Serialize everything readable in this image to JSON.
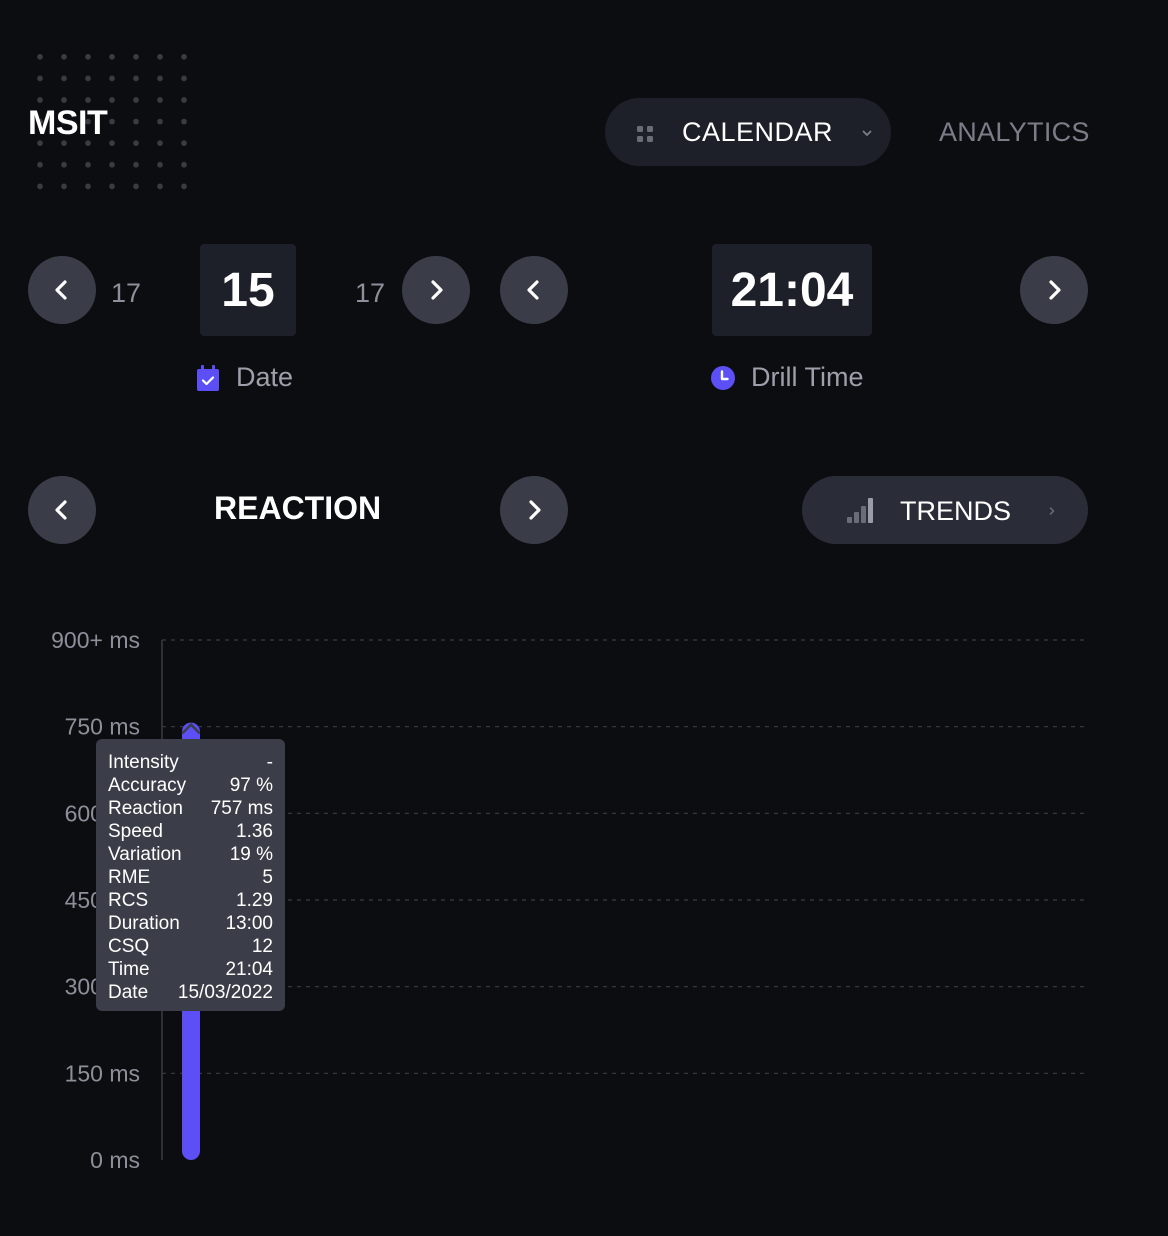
{
  "logo": {
    "text": "MSIT"
  },
  "nav": {
    "calendar_label": "CALENDAR",
    "analytics_label": "ANALYTICS"
  },
  "date_picker": {
    "prev_value": "17",
    "current_value": "15",
    "next_value": "17",
    "label": "Date"
  },
  "time_picker": {
    "current_value": "21:04",
    "label": "Drill Time"
  },
  "metric": {
    "title": "REACTION",
    "trends_label": "TRENDS"
  },
  "colors": {
    "background": "#0c0d11",
    "accent": "#5b4ff5",
    "pill": "#1d2029",
    "button": "#3a3d48"
  },
  "icons": {
    "calendar_pill": "grid-icon",
    "date": "calendar-check-icon",
    "time": "clock-icon",
    "trends": "bar-chart-icon"
  },
  "tooltip": {
    "rows": [
      {
        "label": "Intensity",
        "value": "-"
      },
      {
        "label": "Accuracy",
        "value": "97 %"
      },
      {
        "label": "Reaction",
        "value": "757 ms"
      },
      {
        "label": "Speed",
        "value": "1.36"
      },
      {
        "label": "Variation",
        "value": "19 %"
      },
      {
        "label": "RME",
        "value": "5"
      },
      {
        "label": "RCS",
        "value": "1.29"
      },
      {
        "label": "Duration",
        "value": "13:00"
      },
      {
        "label": "CSQ",
        "value": "12"
      },
      {
        "label": "Time",
        "value": "21:04"
      },
      {
        "label": "Date",
        "value": "15/03/2022"
      }
    ]
  },
  "chart_data": {
    "type": "bar",
    "categories": [
      "15/03/2022 21:04"
    ],
    "values": [
      757
    ],
    "ylim": [
      0,
      900
    ],
    "yticks": [
      0,
      150,
      300,
      450,
      600,
      750,
      900
    ],
    "ytick_labels": [
      "0 ms",
      "150 ms",
      "300 ms",
      "450 ms",
      "600 ms",
      "750 ms",
      "900+ ms"
    ],
    "grid": true,
    "bar_color": "#5b4ff5"
  }
}
